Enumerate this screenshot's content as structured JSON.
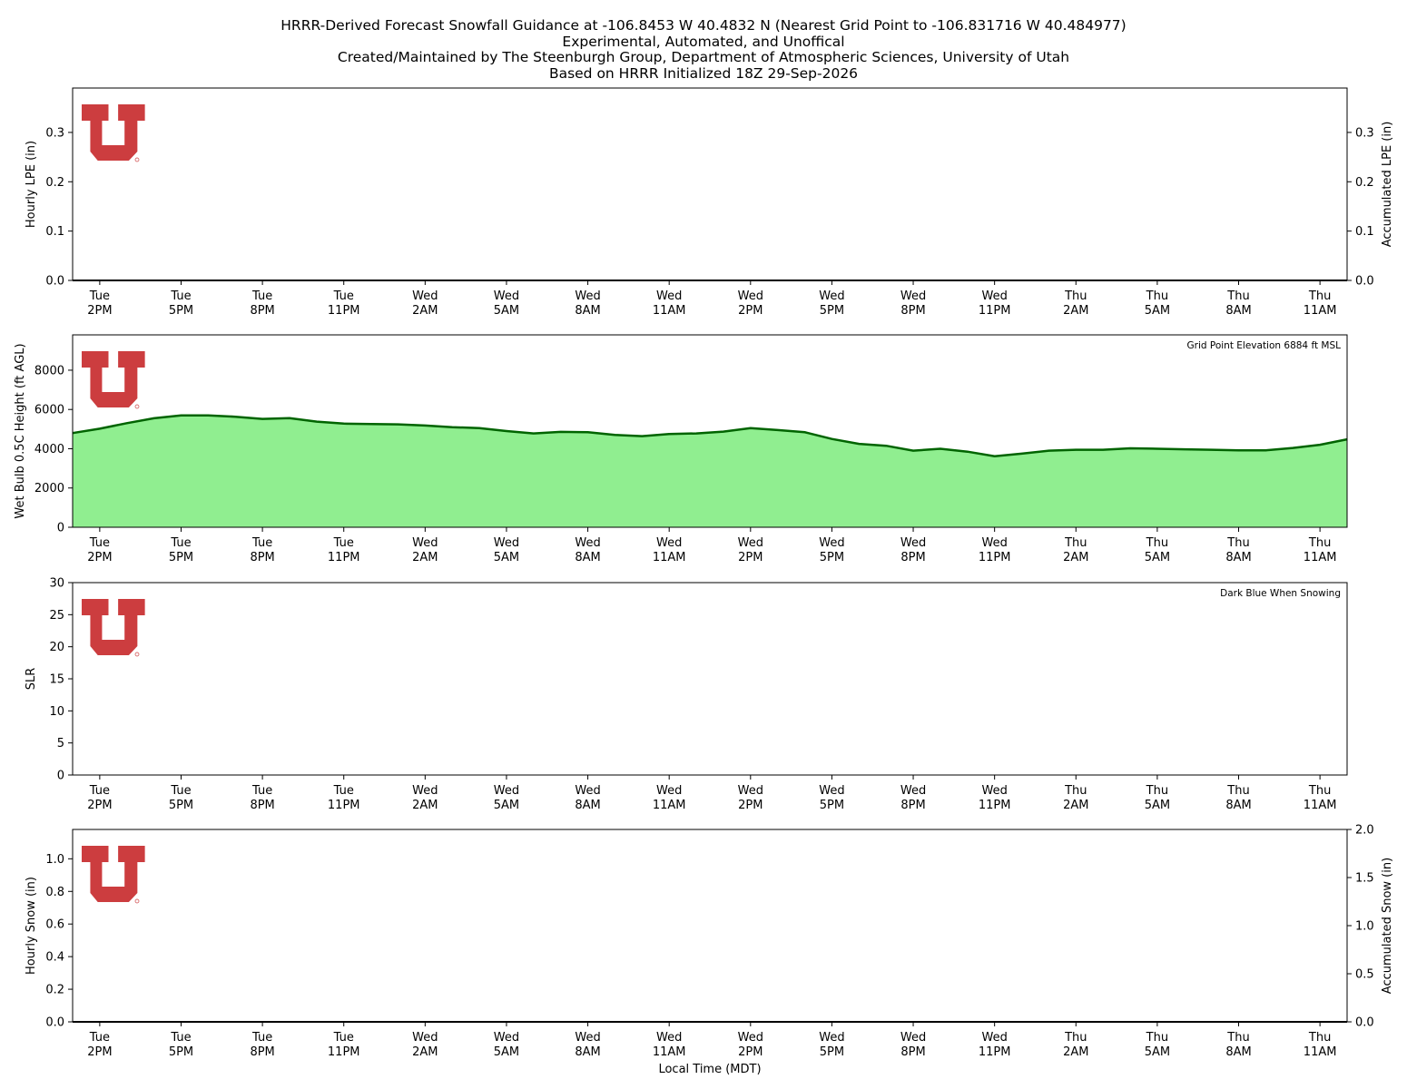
{
  "title_lines": [
    "HRRR-Derived Forecast Snowfall Guidance at -106.8453 W 40.4832 N (Nearest Grid Point to -106.831716 W 40.484977)",
    "Experimental, Automated, and Unoffical",
    "Created/Maintained by The Steenburgh Group, Department of Atmospheric Sciences, University of Utah",
    "Based on HRRR Initialized 18Z 29-Sep-2026"
  ],
  "x_tick_labels": [
    [
      "Tue",
      "2PM"
    ],
    [
      "Tue",
      "5PM"
    ],
    [
      "Tue",
      "8PM"
    ],
    [
      "Tue",
      "11PM"
    ],
    [
      "Wed",
      "2AM"
    ],
    [
      "Wed",
      "5AM"
    ],
    [
      "Wed",
      "8AM"
    ],
    [
      "Wed",
      "11AM"
    ],
    [
      "Wed",
      "2PM"
    ],
    [
      "Wed",
      "5PM"
    ],
    [
      "Wed",
      "8PM"
    ],
    [
      "Wed",
      "11PM"
    ],
    [
      "Thu",
      "2AM"
    ],
    [
      "Thu",
      "5AM"
    ],
    [
      "Thu",
      "8AM"
    ],
    [
      "Thu",
      "11AM"
    ]
  ],
  "xlabel": "Local Time (MDT)",
  "logo": {
    "name": "university-of-utah-logo",
    "color": "#cc3d3f"
  },
  "chart_data": [
    {
      "type": "bar",
      "ylabel": "Hourly LPE (in)",
      "ylim": [
        0,
        0.39
      ],
      "yticks": [
        0.0,
        0.1,
        0.2,
        0.3
      ],
      "ytick_labels": [
        "0.0",
        "0.1",
        "0.2",
        "0.3"
      ],
      "y2label": "Accumulated LPE (in)",
      "y2lim": [
        0,
        0.39
      ],
      "y2ticks": [
        0.0,
        0.1,
        0.2,
        0.3
      ],
      "y2tick_labels": [
        "0.0",
        "0.1",
        "0.2",
        "0.3"
      ],
      "series": [
        {
          "values": [
            0,
            0,
            0,
            0,
            0,
            0,
            0,
            0,
            0,
            0,
            0,
            0,
            0,
            0,
            0,
            0,
            0,
            0,
            0,
            0,
            0,
            0,
            0,
            0,
            0,
            0,
            0,
            0,
            0,
            0,
            0,
            0,
            0,
            0,
            0,
            0,
            0,
            0,
            0,
            0,
            0,
            0,
            0,
            0,
            0,
            0,
            0,
            0
          ]
        }
      ],
      "note": ""
    },
    {
      "type": "area",
      "ylabel": "Wet Bulb 0.5C Height (ft AGL)",
      "ylim": [
        0,
        9800
      ],
      "yticks": [
        0,
        2000,
        4000,
        6000,
        8000
      ],
      "ytick_labels": [
        "0",
        "2000",
        "4000",
        "6000",
        "8000"
      ],
      "series": [
        {
          "values": [
            4800,
            5020,
            5300,
            5550,
            5700,
            5700,
            5630,
            5520,
            5560,
            5380,
            5280,
            5260,
            5240,
            5180,
            5100,
            5050,
            4900,
            4780,
            4860,
            4840,
            4700,
            4640,
            4750,
            4780,
            4870,
            5050,
            4950,
            4840,
            4500,
            4250,
            4150,
            3900,
            4000,
            3850,
            3620,
            3750,
            3900,
            3950,
            3950,
            4020,
            4000,
            3970,
            3950,
            3920,
            3920,
            4040,
            4200,
            4480
          ]
        }
      ],
      "note": "Grid Point Elevation 6884 ft MSL",
      "fill_color": "#90ee90",
      "line_color": "#006400"
    },
    {
      "type": "scatter",
      "ylabel": "SLR",
      "ylim": [
        0,
        30
      ],
      "yticks": [
        0,
        5,
        10,
        15,
        20,
        25,
        30
      ],
      "ytick_labels": [
        "0",
        "5",
        "10",
        "15",
        "20",
        "25",
        "30"
      ],
      "series": [],
      "note": "Dark Blue When Snowing"
    },
    {
      "type": "bar",
      "ylabel": "Hourly Snow (in)",
      "ylim": [
        0,
        1.18
      ],
      "yticks": [
        0.0,
        0.2,
        0.4,
        0.6,
        0.8,
        1.0
      ],
      "ytick_labels": [
        "0.0",
        "0.2",
        "0.4",
        "0.6",
        "0.8",
        "1.0"
      ],
      "y2label": "Accumulated Snow (in)",
      "y2lim": [
        0,
        2.0
      ],
      "y2ticks": [
        0.0,
        0.5,
        1.0,
        1.5,
        2.0
      ],
      "y2tick_labels": [
        "0.0",
        "0.5",
        "1.0",
        "1.5",
        "2.0"
      ],
      "series": [
        {
          "values": [
            0,
            0,
            0,
            0,
            0,
            0,
            0,
            0,
            0,
            0,
            0,
            0,
            0,
            0,
            0,
            0,
            0,
            0,
            0,
            0,
            0,
            0,
            0,
            0,
            0,
            0,
            0,
            0,
            0,
            0,
            0,
            0,
            0,
            0,
            0,
            0,
            0,
            0,
            0,
            0,
            0,
            0,
            0,
            0,
            0,
            0,
            0,
            0
          ]
        }
      ],
      "note": ""
    }
  ]
}
